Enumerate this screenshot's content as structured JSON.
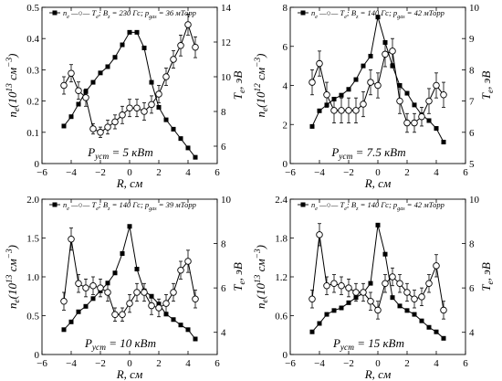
{
  "chart_data": [
    {
      "type": "line",
      "legend_text": "n_e  —○— T_e; B_z = 230 Гс; p_gas = 36 мТорр",
      "legend_placement": "top-left",
      "power_label": "P_уст = 5 кВт",
      "xlabel": "R, см",
      "ylabel_left": "n_e(10^13 см^−3)",
      "ylabel_right": "T_e, эВ",
      "xlim": [
        -6,
        6
      ],
      "xticks": [
        -6,
        -4,
        -2,
        0,
        2,
        4,
        6
      ],
      "ylim_left": [
        0,
        0.5
      ],
      "yticks_left": [
        "0",
        "0.1",
        "0.2",
        "0.3",
        "0.4",
        "0.5"
      ],
      "ylim_right": [
        5,
        14
      ],
      "yticks_right": [
        "6",
        "8",
        "10",
        "12",
        "14"
      ],
      "series": [
        {
          "name": "n_e",
          "axis": "left",
          "marker": "filled-square",
          "x": [
            -4.5,
            -4,
            -3.5,
            -3,
            -2.5,
            -2,
            -1.5,
            -1,
            -0.5,
            0,
            0.5,
            1,
            1.5,
            2,
            2.5,
            3,
            3.5,
            4,
            4.5
          ],
          "y": [
            0.12,
            0.15,
            0.19,
            0.23,
            0.26,
            0.29,
            0.31,
            0.34,
            0.38,
            0.42,
            0.42,
            0.37,
            0.26,
            0.18,
            0.14,
            0.11,
            0.08,
            0.05,
            0.02
          ]
        },
        {
          "name": "T_e",
          "axis": "right",
          "marker": "open-circle",
          "x": [
            -4.5,
            -4,
            -3.5,
            -3,
            -2.5,
            -2,
            -1.5,
            -1,
            -0.5,
            0,
            0.5,
            1,
            1.5,
            2,
            2.5,
            3,
            3.5,
            4,
            4.5
          ],
          "y": [
            9.5,
            10.2,
            9.2,
            8.8,
            7.0,
            6.8,
            7.1,
            7.4,
            7.8,
            8.2,
            8.2,
            8.0,
            8.4,
            9.0,
            10.0,
            11.0,
            11.8,
            13.0,
            11.7
          ],
          "err": [
            0.5,
            0.5,
            0.5,
            0.5,
            0.3,
            0.3,
            0.4,
            0.4,
            0.5,
            0.5,
            0.5,
            0.5,
            0.5,
            0.5,
            0.5,
            0.5,
            0.6,
            0.6,
            0.6
          ]
        }
      ]
    },
    {
      "type": "line",
      "legend_text": "n_e  —○— T_e; B_z = 140 Гс; p_gas = 42 мТорр",
      "legend_placement": "top-left",
      "power_label": "P_уст = 7.5 кВт",
      "xlabel": "R, см",
      "ylabel_left": "n_e(10^12 см^−3)",
      "ylabel_right": "T_e, эВ",
      "xlim": [
        -6,
        6
      ],
      "xticks": [
        -6,
        -4,
        -2,
        0,
        2,
        4,
        6
      ],
      "ylim_left": [
        0,
        8
      ],
      "yticks_left": [
        "0",
        "2",
        "4",
        "6",
        "8"
      ],
      "ylim_right": [
        5,
        10
      ],
      "yticks_right": [
        "5",
        "6",
        "7",
        "8",
        "9",
        "10"
      ],
      "series": [
        {
          "name": "n_e",
          "axis": "left",
          "marker": "filled-square",
          "x": [
            -4.5,
            -4,
            -3.5,
            -3,
            -2.5,
            -2,
            -1.5,
            -1,
            -0.5,
            0,
            0.5,
            1,
            1.5,
            2,
            2.5,
            3,
            3.5,
            4,
            4.5
          ],
          "y": [
            1.9,
            2.7,
            3.0,
            3.3,
            3.5,
            3.8,
            4.3,
            5.0,
            5.5,
            7.5,
            6.2,
            5.0,
            4.0,
            3.6,
            3.0,
            2.5,
            2.2,
            1.8,
            1.1
          ]
        },
        {
          "name": "T_e",
          "axis": "right",
          "marker": "open-circle",
          "x": [
            -4.5,
            -4,
            -3.5,
            -3,
            -2.5,
            -2,
            -1.5,
            -1,
            -0.5,
            0,
            0.5,
            1,
            1.5,
            2,
            2.5,
            3,
            3.5,
            4,
            4.5
          ],
          "y": [
            7.6,
            8.2,
            7.2,
            6.7,
            6.7,
            6.7,
            6.7,
            6.9,
            7.6,
            7.5,
            8.5,
            8.6,
            7.0,
            6.3,
            6.3,
            6.5,
            7.0,
            7.5,
            7.2
          ],
          "err": [
            0.4,
            0.4,
            0.4,
            0.4,
            0.4,
            0.4,
            0.4,
            0.4,
            0.4,
            0.4,
            0.4,
            0.4,
            0.4,
            0.3,
            0.3,
            0.3,
            0.4,
            0.4,
            0.4
          ]
        }
      ]
    },
    {
      "type": "line",
      "legend_text": "n_e  —○— T_e; B_z = 140 Гс; p_gas = 39 мТорр",
      "legend_placement": "top-left",
      "power_label": "P_уст = 10 кВт",
      "xlabel": "R, см",
      "ylabel_left": "n_e(10^13 см^−3)",
      "ylabel_right": "T_e, эВ",
      "xlim": [
        -6,
        6
      ],
      "xticks": [
        -6,
        -4,
        -2,
        0,
        2,
        4,
        6
      ],
      "ylim_left": [
        0,
        2.0
      ],
      "yticks_left": [
        "0",
        "0.5",
        "1.0",
        "1.5",
        "2.0"
      ],
      "ylim_right": [
        3,
        10
      ],
      "yticks_right": [
        "4",
        "6",
        "8",
        "10"
      ],
      "series": [
        {
          "name": "n_e",
          "axis": "left",
          "marker": "filled-square",
          "x": [
            -4.5,
            -4,
            -3.5,
            -3,
            -2.5,
            -2,
            -1.5,
            -1,
            -0.5,
            0,
            0.5,
            1,
            1.5,
            2,
            2.5,
            3,
            3.5,
            4,
            4.5
          ],
          "y": [
            0.32,
            0.42,
            0.55,
            0.62,
            0.72,
            0.82,
            0.92,
            1.05,
            1.3,
            1.65,
            1.1,
            0.82,
            0.75,
            0.65,
            0.52,
            0.45,
            0.38,
            0.32,
            0.2
          ]
        },
        {
          "name": "T_e",
          "axis": "right",
          "marker": "open-circle",
          "x": [
            -4.5,
            -4,
            -3.5,
            -3,
            -2.5,
            -2,
            -1.5,
            -1,
            -0.5,
            0,
            0.5,
            1,
            1.5,
            2,
            2.5,
            3,
            3.5,
            4,
            4.5
          ],
          "y": [
            5.4,
            8.2,
            6.2,
            6.0,
            6.1,
            6.0,
            5.8,
            4.8,
            4.8,
            5.3,
            5.8,
            5.8,
            5.2,
            5.1,
            5.3,
            5.8,
            6.8,
            7.2,
            5.5
          ],
          "err": [
            0.4,
            0.5,
            0.4,
            0.4,
            0.4,
            0.4,
            0.4,
            0.3,
            0.3,
            0.4,
            0.4,
            0.4,
            0.4,
            0.4,
            0.4,
            0.4,
            0.4,
            0.5,
            0.4
          ]
        }
      ]
    },
    {
      "type": "line",
      "legend_text": "n_e  —○— T_e; B_z = 140 Гс; p_gas = 42 мТорр",
      "legend_placement": "top-left",
      "power_label": "P_уст = 15 кВт",
      "xlabel": "R, см",
      "ylabel_left": "n_e(10^13 см^−3)",
      "ylabel_right": "T_e, эВ",
      "xlim": [
        -6,
        6
      ],
      "xticks": [
        -6,
        -4,
        -2,
        0,
        2,
        4,
        6
      ],
      "ylim_left": [
        0,
        2.4
      ],
      "yticks_left": [
        "0",
        "0.6",
        "1.2",
        "1.8",
        "2.4"
      ],
      "ylim_right": [
        3,
        10
      ],
      "yticks_right": [
        "4",
        "6",
        "8",
        "10"
      ],
      "series": [
        {
          "name": "n_e",
          "axis": "left",
          "marker": "filled-square",
          "x": [
            -4.5,
            -4,
            -3.5,
            -3,
            -2.5,
            -2,
            -1.5,
            -1,
            -0.5,
            0,
            0.5,
            1,
            1.5,
            2,
            2.5,
            3,
            3.5,
            4,
            4.5
          ],
          "y": [
            0.35,
            0.48,
            0.62,
            0.68,
            0.72,
            0.8,
            0.88,
            0.95,
            1.1,
            2.0,
            1.55,
            0.88,
            0.75,
            0.68,
            0.62,
            0.52,
            0.42,
            0.35,
            0.25
          ]
        },
        {
          "name": "T_e",
          "axis": "right",
          "marker": "open-circle",
          "x": [
            -4.5,
            -4,
            -3.5,
            -3,
            -2.5,
            -2,
            -1.5,
            -1,
            -0.5,
            0,
            0.5,
            1,
            1.5,
            2,
            2.5,
            3,
            3.5,
            4,
            4.5
          ],
          "y": [
            5.5,
            8.4,
            6.1,
            6.2,
            6.1,
            6.0,
            5.8,
            5.8,
            5.4,
            5.0,
            6.2,
            6.5,
            6.2,
            5.8,
            5.5,
            5.6,
            6.2,
            7.0,
            5.0
          ],
          "err": [
            0.4,
            0.5,
            0.4,
            0.4,
            0.4,
            0.4,
            0.4,
            0.4,
            0.4,
            0.4,
            0.4,
            0.4,
            0.4,
            0.4,
            0.4,
            0.4,
            0.4,
            0.5,
            0.4
          ]
        }
      ]
    }
  ]
}
